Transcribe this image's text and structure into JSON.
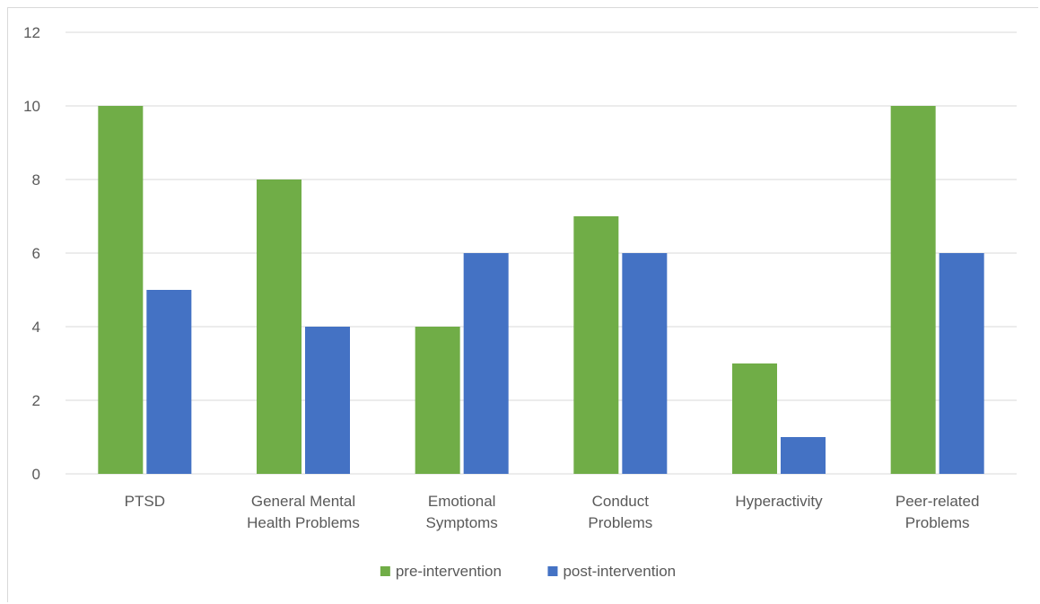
{
  "chart_data": {
    "type": "bar",
    "categories": [
      [
        "PTSD"
      ],
      [
        "General Mental",
        "Health Problems"
      ],
      [
        "Emotional",
        "Symptoms"
      ],
      [
        "Conduct",
        "Problems"
      ],
      [
        "Hyperactivity"
      ],
      [
        "Peer-related",
        "Problems"
      ]
    ],
    "series": [
      {
        "name": "pre-intervention",
        "color": "#70ad47",
        "values": [
          10,
          8,
          4,
          7,
          3,
          10
        ]
      },
      {
        "name": "post-intervention",
        "color": "#4472c4",
        "values": [
          5,
          4,
          6,
          6,
          1,
          6
        ]
      }
    ],
    "yticks": [
      0,
      2,
      4,
      6,
      8,
      10,
      12
    ],
    "ylim": [
      0,
      12
    ],
    "grid": true,
    "gridline_color": "#d9d9d9",
    "legend_position": "bottom",
    "title": "",
    "xlabel": "",
    "ylabel": ""
  }
}
